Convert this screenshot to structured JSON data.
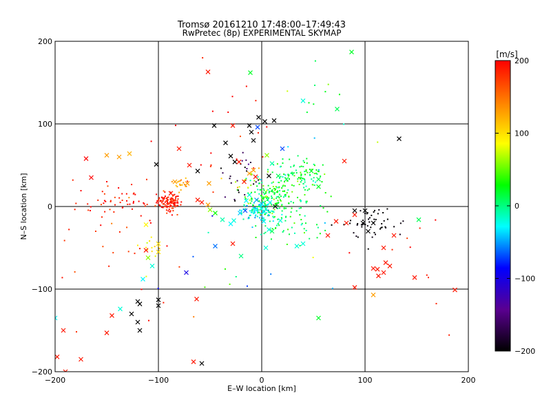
{
  "chart_data": {
    "type": "scatter",
    "title": "Tromsø 20161210 17:48:00–17:49:43",
    "subtitle": "RwPretec (8p) EXPERIMENTAL SKYMAP",
    "xlabel": "E–W location [km]",
    "ylabel": "N–S location [km]",
    "xlim": [
      -200,
      200
    ],
    "ylim": [
      -200,
      200
    ],
    "xticks": [
      -200,
      -100,
      0,
      100,
      200
    ],
    "yticks": [
      -200,
      -100,
      0,
      100,
      200
    ],
    "grid": true,
    "colorbar": {
      "label": "[m/s]",
      "min": -200,
      "max": 200,
      "ticks": [
        -200,
        -100,
        0,
        100,
        200
      ],
      "colors": [
        "#000000",
        "#5a0090",
        "#0000ff",
        "#00ffff",
        "#00ff00",
        "#ffff00",
        "#ff8000",
        "#ff0000"
      ]
    },
    "markers": {
      "small": "dot",
      "large": "cross"
    },
    "clusters": [
      {
        "cx": -90,
        "cy": 5,
        "sx": 6,
        "sy": 5,
        "n": 110,
        "v": 190,
        "dv": 15
      },
      {
        "cx": -130,
        "cy": 5,
        "sx": 25,
        "sy": 12,
        "n": 60,
        "v": 190,
        "dv": 15
      },
      {
        "cx": -78,
        "cy": 25,
        "sx": 5,
        "sy": 4,
        "n": 18,
        "v": 130,
        "dv": 15
      },
      {
        "cx": 5,
        "cy": 10,
        "sx": 10,
        "sy": 10,
        "n": 130,
        "v": 20,
        "dv": 25
      },
      {
        "cx": -5,
        "cy": -5,
        "sx": 7,
        "sy": 5,
        "n": 90,
        "v": -30,
        "dv": 15
      },
      {
        "cx": 35,
        "cy": 40,
        "sx": 15,
        "sy": 10,
        "n": 90,
        "v": 20,
        "dv": 20
      },
      {
        "cx": 25,
        "cy": 10,
        "sx": 18,
        "sy": 18,
        "n": 80,
        "v": 10,
        "dv": 20
      },
      {
        "cx": 20,
        "cy": -25,
        "sx": 20,
        "sy": 10,
        "n": 40,
        "v": 10,
        "dv": 20
      },
      {
        "cx": -20,
        "cy": 40,
        "sx": 10,
        "sy": 15,
        "n": 25,
        "v": -180,
        "dv": 20
      },
      {
        "cx": -15,
        "cy": 30,
        "sx": 8,
        "sy": 10,
        "n": 18,
        "v": 60,
        "dv": 30
      },
      {
        "cx": 110,
        "cy": -20,
        "sx": 15,
        "sy": 10,
        "n": 50,
        "v": -200,
        "dv": 5
      },
      {
        "cx": -105,
        "cy": -48,
        "sx": 4,
        "sy": 6,
        "n": 12,
        "v": 100,
        "dv": 10
      },
      {
        "cx": 60,
        "cy": 110,
        "sx": 20,
        "sy": 30,
        "n": 14,
        "v": 20,
        "dv": 30
      },
      {
        "cx": -150,
        "cy": -70,
        "sx": 35,
        "sy": 50,
        "n": 22,
        "v": 190,
        "dv": 15
      },
      {
        "cx": 150,
        "cy": -60,
        "sx": 30,
        "sy": 40,
        "n": 10,
        "v": 190,
        "dv": 15
      },
      {
        "cx": -40,
        "cy": 70,
        "sx": 30,
        "sy": 40,
        "n": 22,
        "v": 190,
        "dv": 20
      },
      {
        "cx": -40,
        "cy": -70,
        "sx": 40,
        "sy": 40,
        "n": 14,
        "v": 0,
        "dv": 60
      }
    ],
    "crosses": [
      {
        "x": -150,
        "y": 62,
        "v": 130
      },
      {
        "x": -138,
        "y": 60,
        "v": 130
      },
      {
        "x": -128,
        "y": 64,
        "v": 120
      },
      {
        "x": -170,
        "y": 58,
        "v": 200
      },
      {
        "x": -165,
        "y": 35,
        "v": 200
      },
      {
        "x": -102,
        "y": 51,
        "v": -200
      },
      {
        "x": -112,
        "y": -22,
        "v": 90
      },
      {
        "x": -100,
        "y": -45,
        "v": 100
      },
      {
        "x": -100,
        "y": -55,
        "v": 100
      },
      {
        "x": -110,
        "y": -62,
        "v": 60
      },
      {
        "x": -106,
        "y": -72,
        "v": -20
      },
      {
        "x": -115,
        "y": -88,
        "v": -30
      },
      {
        "x": -112,
        "y": -53,
        "v": 190
      },
      {
        "x": -120,
        "y": -115,
        "v": -200
      },
      {
        "x": -118,
        "y": -118,
        "v": -200
      },
      {
        "x": -100,
        "y": -113,
        "v": -200
      },
      {
        "x": -100,
        "y": -120,
        "v": -200
      },
      {
        "x": -126,
        "y": -130,
        "v": -200
      },
      {
        "x": -120,
        "y": -140,
        "v": -200
      },
      {
        "x": -118,
        "y": -150,
        "v": -200
      },
      {
        "x": -145,
        "y": -132,
        "v": 190
      },
      {
        "x": -150,
        "y": -153,
        "v": 190
      },
      {
        "x": -175,
        "y": -185,
        "v": 190
      },
      {
        "x": -190,
        "y": -200,
        "v": 190
      },
      {
        "x": -198,
        "y": -182,
        "v": 190
      },
      {
        "x": -192,
        "y": -150,
        "v": 190
      },
      {
        "x": -200,
        "y": -135,
        "v": -30
      },
      {
        "x": -137,
        "y": -124,
        "v": -20
      },
      {
        "x": -66,
        "y": -188,
        "v": 190
      },
      {
        "x": -58,
        "y": -190,
        "v": -200
      },
      {
        "x": -73,
        "y": -80,
        "v": -100
      },
      {
        "x": -63,
        "y": -112,
        "v": 190
      },
      {
        "x": -80,
        "y": 70,
        "v": 190
      },
      {
        "x": -70,
        "y": 50,
        "v": 190
      },
      {
        "x": -62,
        "y": 43,
        "v": -200
      },
      {
        "x": -51,
        "y": 28,
        "v": 130
      },
      {
        "x": -72,
        "y": 28,
        "v": 130
      },
      {
        "x": -84,
        "y": 30,
        "v": 130
      },
      {
        "x": -88,
        "y": 16,
        "v": 190
      },
      {
        "x": -46,
        "y": 98,
        "v": -200
      },
      {
        "x": -28,
        "y": 98,
        "v": 190
      },
      {
        "x": -35,
        "y": 77,
        "v": -200
      },
      {
        "x": -30,
        "y": 61,
        "v": -200
      },
      {
        "x": -26,
        "y": 54,
        "v": -200
      },
      {
        "x": -22,
        "y": 54,
        "v": 190
      },
      {
        "x": -17,
        "y": 30,
        "v": 190
      },
      {
        "x": -12,
        "y": 40,
        "v": 130
      },
      {
        "x": -8,
        "y": 44,
        "v": 130
      },
      {
        "x": -6,
        "y": 36,
        "v": 190
      },
      {
        "x": -3,
        "y": 108,
        "v": -200
      },
      {
        "x": 3,
        "y": 103,
        "v": -200
      },
      {
        "x": 12,
        "y": 104,
        "v": -200
      },
      {
        "x": -12,
        "y": 98,
        "v": -200
      },
      {
        "x": -10,
        "y": 90,
        "v": -200
      },
      {
        "x": -8,
        "y": 80,
        "v": -200
      },
      {
        "x": -4,
        "y": 96,
        "v": -70
      },
      {
        "x": -11,
        "y": 162,
        "v": 20
      },
      {
        "x": 40,
        "y": 128,
        "v": -20
      },
      {
        "x": 73,
        "y": 118,
        "v": 10
      },
      {
        "x": 87,
        "y": 187,
        "v": 20
      },
      {
        "x": -52,
        "y": 163,
        "v": 190
      },
      {
        "x": -12,
        "y": 14,
        "v": -20
      },
      {
        "x": -15,
        "y": 7,
        "v": -30
      },
      {
        "x": -5,
        "y": 8,
        "v": -50
      },
      {
        "x": 0,
        "y": 3,
        "v": -40
      },
      {
        "x": 4,
        "y": -3,
        "v": -20
      },
      {
        "x": 8,
        "y": 5,
        "v": -30
      },
      {
        "x": 13,
        "y": 0,
        "v": -200
      },
      {
        "x": -16,
        "y": -5,
        "v": -70
      },
      {
        "x": -21,
        "y": -8,
        "v": -40
      },
      {
        "x": -27,
        "y": -17,
        "v": -20
      },
      {
        "x": -30,
        "y": -21,
        "v": -30
      },
      {
        "x": 2,
        "y": -18,
        "v": -30
      },
      {
        "x": 7,
        "y": -28,
        "v": -20
      },
      {
        "x": 18,
        "y": -17,
        "v": -20
      },
      {
        "x": 40,
        "y": -45,
        "v": -20
      },
      {
        "x": 34,
        "y": -48,
        "v": -20
      },
      {
        "x": 4,
        "y": -50,
        "v": -20
      },
      {
        "x": 10,
        "y": -30,
        "v": 10
      },
      {
        "x": -38,
        "y": -16,
        "v": -10
      },
      {
        "x": -45,
        "y": -8,
        "v": 30
      },
      {
        "x": -50,
        "y": -4,
        "v": 60
      },
      {
        "x": -52,
        "y": 2,
        "v": 130
      },
      {
        "x": -58,
        "y": 5,
        "v": 190
      },
      {
        "x": -62,
        "y": 8,
        "v": 190
      },
      {
        "x": -28,
        "y": -45,
        "v": 190
      },
      {
        "x": -20,
        "y": -60,
        "v": 0
      },
      {
        "x": -45,
        "y": -48,
        "v": -60
      },
      {
        "x": 20,
        "y": 70,
        "v": -70
      },
      {
        "x": 5,
        "y": 62,
        "v": 60
      },
      {
        "x": 7,
        "y": 37,
        "v": -200
      },
      {
        "x": 10,
        "y": 52,
        "v": -10
      },
      {
        "x": 16,
        "y": 37,
        "v": 10
      },
      {
        "x": 24,
        "y": 33,
        "v": 10
      },
      {
        "x": 48,
        "y": 43,
        "v": 20
      },
      {
        "x": 55,
        "y": 24,
        "v": 20
      },
      {
        "x": 55,
        "y": 33,
        "v": 10
      },
      {
        "x": 55,
        "y": -135,
        "v": 20
      },
      {
        "x": 72,
        "y": -18,
        "v": 190
      },
      {
        "x": 82,
        "y": -20,
        "v": 190
      },
      {
        "x": 64,
        "y": -35,
        "v": 190
      },
      {
        "x": 80,
        "y": 55,
        "v": 190
      },
      {
        "x": 90,
        "y": -10,
        "v": 190
      },
      {
        "x": 90,
        "y": -5,
        "v": -200
      },
      {
        "x": 98,
        "y": -20,
        "v": -200
      },
      {
        "x": 100,
        "y": -5,
        "v": -200
      },
      {
        "x": 103,
        "y": -30,
        "v": -200
      },
      {
        "x": 108,
        "y": -20,
        "v": -200
      },
      {
        "x": 118,
        "y": -50,
        "v": 190
      },
      {
        "x": 128,
        "y": -35,
        "v": 190
      },
      {
        "x": 133,
        "y": 82,
        "v": -200
      },
      {
        "x": 108,
        "y": -75,
        "v": 190
      },
      {
        "x": 112,
        "y": -76,
        "v": 190
      },
      {
        "x": 118,
        "y": -80,
        "v": 190
      },
      {
        "x": 120,
        "y": -68,
        "v": 190
      },
      {
        "x": 124,
        "y": -72,
        "v": 190
      },
      {
        "x": 113,
        "y": -84,
        "v": 190
      },
      {
        "x": 148,
        "y": -86,
        "v": 190
      },
      {
        "x": 152,
        "y": -16,
        "v": 10
      },
      {
        "x": 90,
        "y": -98,
        "v": 190
      },
      {
        "x": 108,
        "y": -107,
        "v": 130
      },
      {
        "x": 187,
        "y": -101,
        "v": 190
      }
    ]
  }
}
